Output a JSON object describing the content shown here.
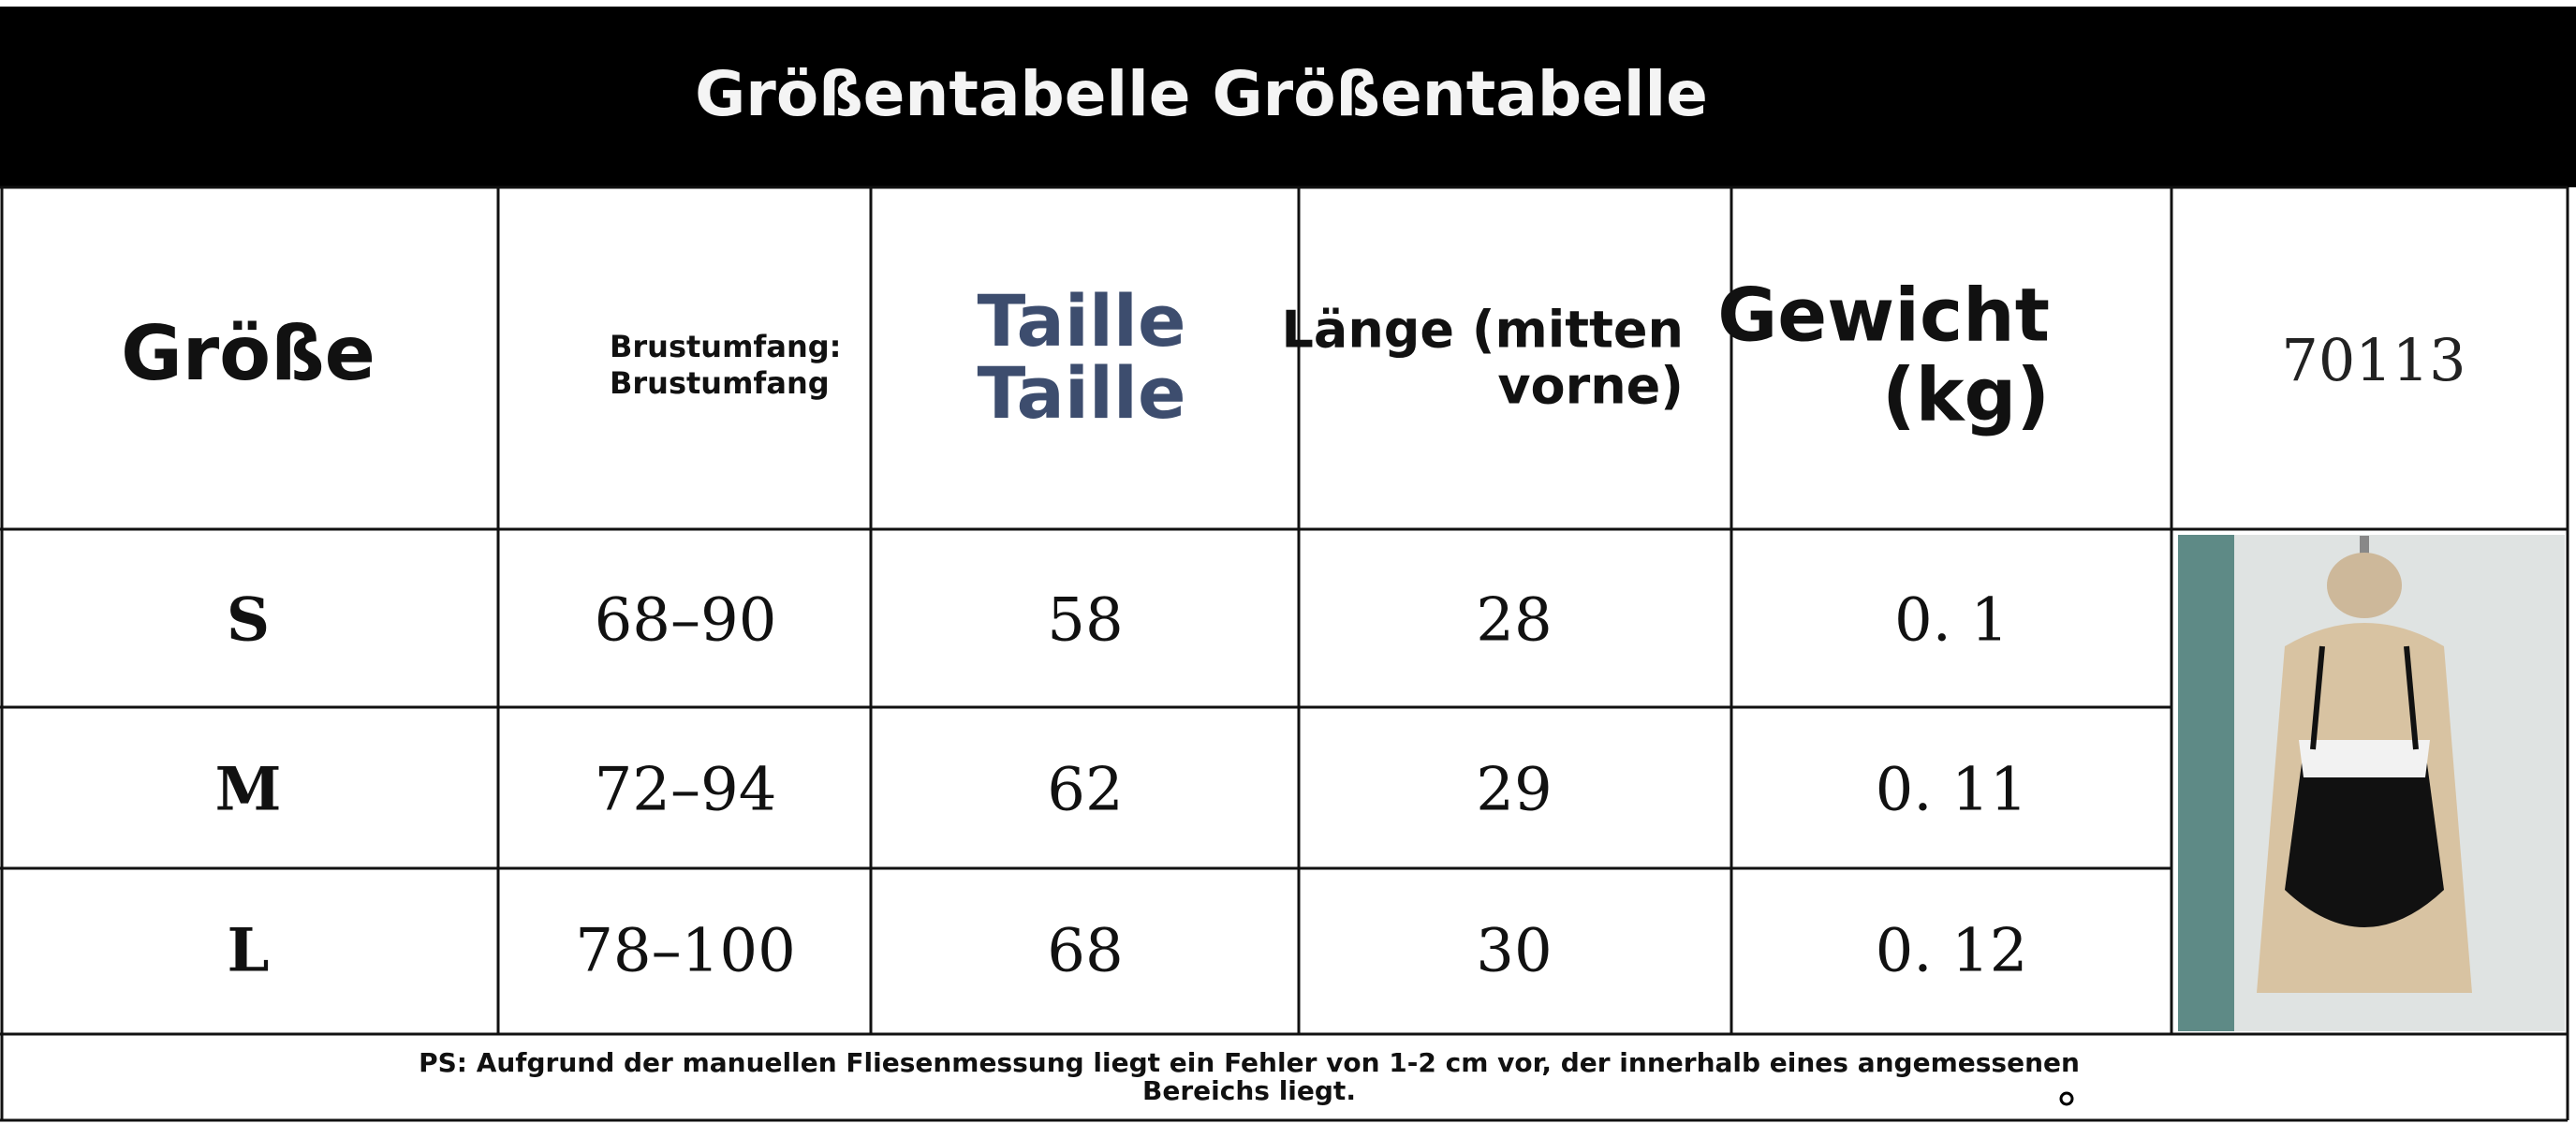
{
  "header": {
    "title": "Größentabelle Größentabelle"
  },
  "table": {
    "columns": [
      [
        "Größe"
      ],
      [
        "Brustumfang:",
        "Brustumfang"
      ],
      [
        "Taille",
        "Taille"
      ],
      [
        "Länge (mitten",
        "vorne)"
      ],
      [
        "Gewicht",
        "(kg)"
      ],
      [
        "70113"
      ]
    ],
    "rows": [
      [
        "S",
        "68–90",
        "58",
        "28",
        "0. 1"
      ],
      [
        "M",
        "72–94",
        "62",
        "29",
        "0. 11"
      ],
      [
        "L",
        "78–100",
        "68",
        "30",
        "0. 12"
      ]
    ]
  },
  "footer": {
    "note_lines": [
      "PS: Aufgrund der manuellen Fliesenmessung liegt ein Fehler von 1-2 cm vor, der innerhalb eines angemessenen",
      "Bereichs liegt."
    ]
  }
}
